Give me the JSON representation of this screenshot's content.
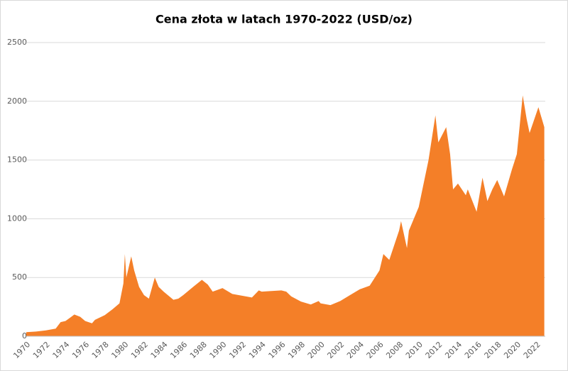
{
  "chart_data": {
    "type": "area",
    "title": "Cena złota w latach 1970-2022 (USD/oz)",
    "x": [
      1970,
      1971,
      1972,
      1973,
      1973.5,
      1974,
      1974.5,
      1974.9,
      1975.5,
      1976,
      1976.7,
      1977,
      1978,
      1978.8,
      1979.5,
      1979.9,
      1980.05,
      1980.2,
      1980.7,
      1981,
      1981.5,
      1982,
      1982.5,
      1983.1,
      1983.5,
      1984,
      1985,
      1985.5,
      1986,
      1987,
      1987.9,
      1988.5,
      1989,
      1990,
      1991,
      1992,
      1993,
      1993.7,
      1994,
      1995,
      1996,
      1996.5,
      1997,
      1998,
      1999,
      1999.8,
      2000,
      2001,
      2002,
      2003,
      2004,
      2005,
      2006,
      2006.4,
      2007,
      2008,
      2008.2,
      2008.8,
      2009,
      2010,
      2011,
      2011.7,
      2012,
      2012.8,
      2013.2,
      2013.5,
      2014,
      2014.8,
      2015,
      2015.9,
      2016.5,
      2017,
      2017.5,
      2018,
      2018.7,
      2019.5,
      2020,
      2020.6,
      2021,
      2021.3,
      2022.2,
      2022.8
    ],
    "values": [
      35,
      40,
      50,
      65,
      120,
      130,
      160,
      185,
      165,
      130,
      110,
      140,
      180,
      230,
      280,
      450,
      700,
      500,
      680,
      560,
      420,
      350,
      320,
      500,
      420,
      380,
      310,
      320,
      350,
      420,
      480,
      440,
      380,
      410,
      360,
      345,
      330,
      390,
      380,
      385,
      390,
      380,
      340,
      295,
      270,
      300,
      280,
      265,
      300,
      350,
      400,
      430,
      560,
      700,
      650,
      900,
      980,
      750,
      900,
      1100,
      1500,
      1880,
      1650,
      1780,
      1550,
      1250,
      1300,
      1200,
      1250,
      1060,
      1350,
      1150,
      1250,
      1330,
      1190,
      1420,
      1550,
      2050,
      1850,
      1730,
      1950,
      1780
    ],
    "color": "#f47f28",
    "xlim": [
      1970,
      2022.9
    ],
    "xticks": [
      1970,
      1972,
      1974,
      1976,
      1978,
      1980,
      1982,
      1984,
      1986,
      1988,
      1990,
      1992,
      1994,
      1996,
      1998,
      2000,
      2002,
      2004,
      2006,
      2008,
      2010,
      2012,
      2014,
      2016,
      2018,
      2020,
      2022
    ],
    "ylim": [
      0,
      2500
    ],
    "yticks": [
      0,
      500,
      1000,
      1500,
      2000,
      2500
    ],
    "grid": true
  }
}
